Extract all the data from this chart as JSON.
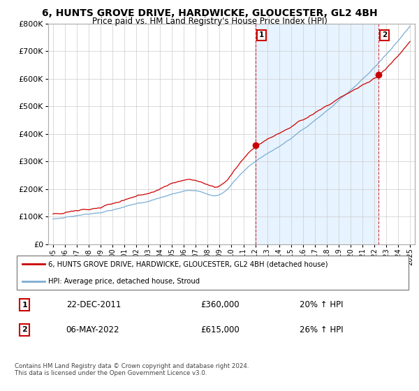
{
  "title": "6, HUNTS GROVE DRIVE, HARDWICKE, GLOUCESTER, GL2 4BH",
  "subtitle": "Price paid vs. HM Land Registry's House Price Index (HPI)",
  "legend_house": "6, HUNTS GROVE DRIVE, HARDWICKE, GLOUCESTER, GL2 4BH (detached house)",
  "legend_hpi": "HPI: Average price, detached house, Stroud",
  "annotation1_date": "22-DEC-2011",
  "annotation1_price": "£360,000",
  "annotation1_hpi": "20% ↑ HPI",
  "annotation2_date": "06-MAY-2022",
  "annotation2_price": "£615,000",
  "annotation2_hpi": "26% ↑ HPI",
  "footnote": "Contains HM Land Registry data © Crown copyright and database right 2024.\nThis data is licensed under the Open Government Licence v3.0.",
  "ylim": [
    0,
    800000
  ],
  "house_color": "#cc0000",
  "hpi_color": "#7aadd4",
  "shade_color": "#ddeeff",
  "annotation_color": "#cc0000",
  "background_color": "#ffffff",
  "grid_color": "#cccccc",
  "sale1_year": 2011.96,
  "sale1_price": 360000,
  "sale2_year": 2022.37,
  "sale2_price": 615000
}
